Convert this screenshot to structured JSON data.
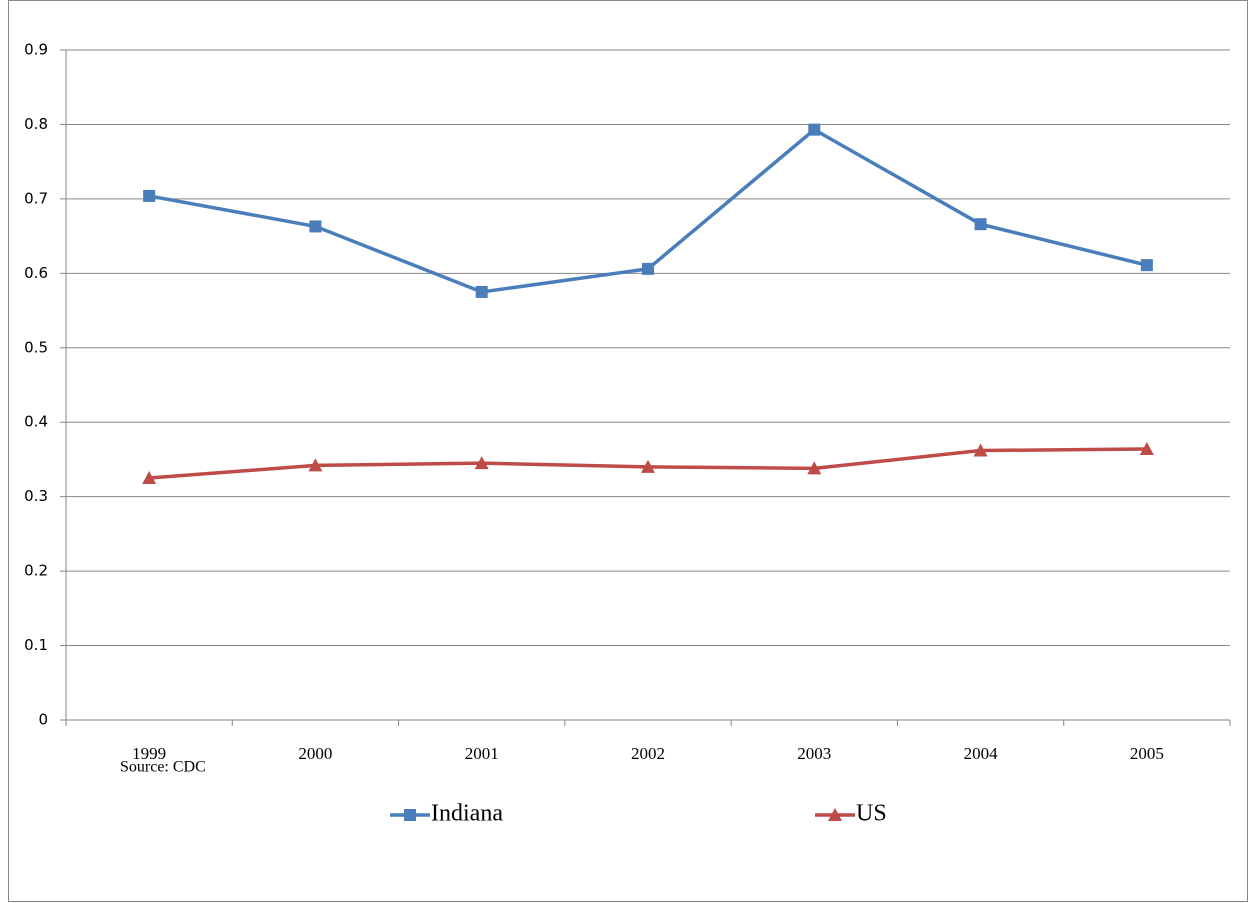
{
  "chart_data": {
    "type": "line",
    "source": "Source:  CDC",
    "categories": [
      "1999",
      "2000",
      "2001",
      "2002",
      "2003",
      "2004",
      "2005"
    ],
    "series": [
      {
        "name": "Indiana",
        "color": "#4a7ebb",
        "marker": "square",
        "values": [
          0.704,
          0.663,
          0.575,
          0.606,
          0.793,
          0.666,
          0.611
        ]
      },
      {
        "name": "US",
        "color": "#be4b48",
        "marker": "triangle",
        "values": [
          0.325,
          0.342,
          0.345,
          0.34,
          0.338,
          0.362,
          0.364
        ]
      }
    ],
    "ylim": [
      0,
      0.9
    ],
    "yticks": [
      0,
      0.1,
      0.2,
      0.3,
      0.4,
      0.5,
      0.6,
      0.7,
      0.8,
      0.9
    ],
    "grid": true,
    "legend": "bottom"
  }
}
